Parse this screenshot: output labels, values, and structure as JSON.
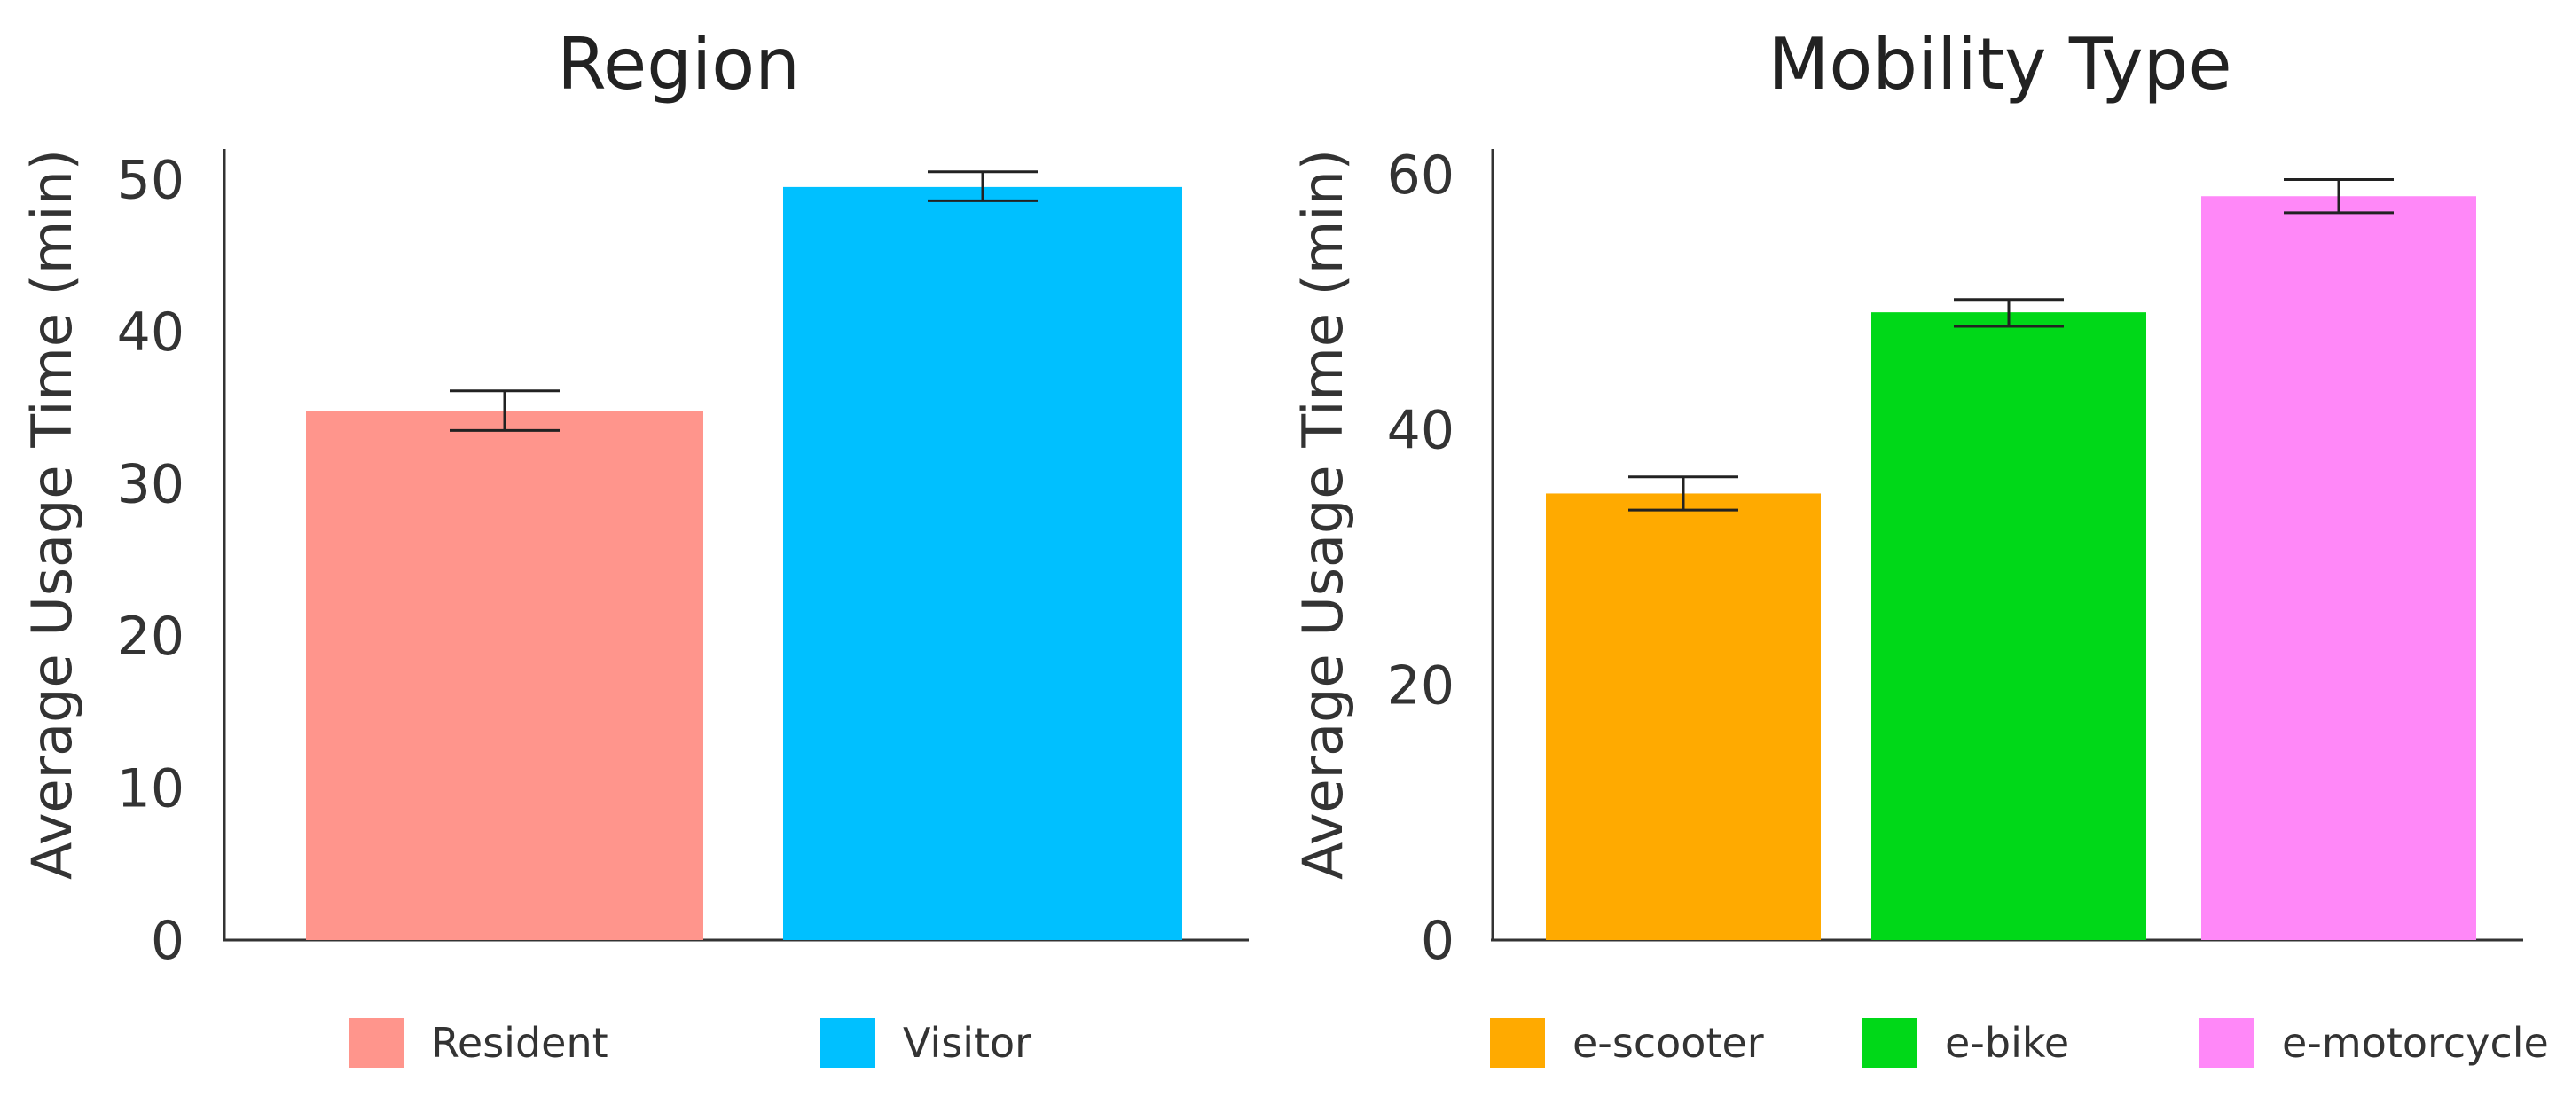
{
  "chart_data": [
    {
      "type": "bar",
      "title": "Region",
      "ylabel": "Average Usage Time (min)",
      "xlabel": "",
      "ylim": [
        0,
        52
      ],
      "yticks": [
        0,
        10,
        20,
        30,
        40,
        50
      ],
      "grid": false,
      "legend_position": "bottom",
      "categories": [
        "Resident",
        "Visitor"
      ],
      "values": [
        34.8,
        49.5
      ],
      "error_low": [
        33.5,
        48.6
      ],
      "error_high": [
        36.1,
        50.5
      ],
      "colors": [
        "#FF958C",
        "#00C0FF"
      ]
    },
    {
      "type": "bar",
      "title": "Mobility Type",
      "ylabel": "Average Usage Time (min)",
      "xlabel": "",
      "ylim": [
        0,
        62
      ],
      "yticks": [
        0,
        20,
        40,
        60
      ],
      "grid": false,
      "legend_position": "bottom",
      "categories": [
        "e-scooter",
        "e-bike",
        "e-motorcycle"
      ],
      "values": [
        35.0,
        49.2,
        58.3
      ],
      "error_low": [
        33.7,
        48.1,
        57.0
      ],
      "error_high": [
        36.3,
        50.2,
        59.6
      ],
      "colors": [
        "#FFAA00",
        "#00D818",
        "#FF88F8"
      ]
    }
  ]
}
